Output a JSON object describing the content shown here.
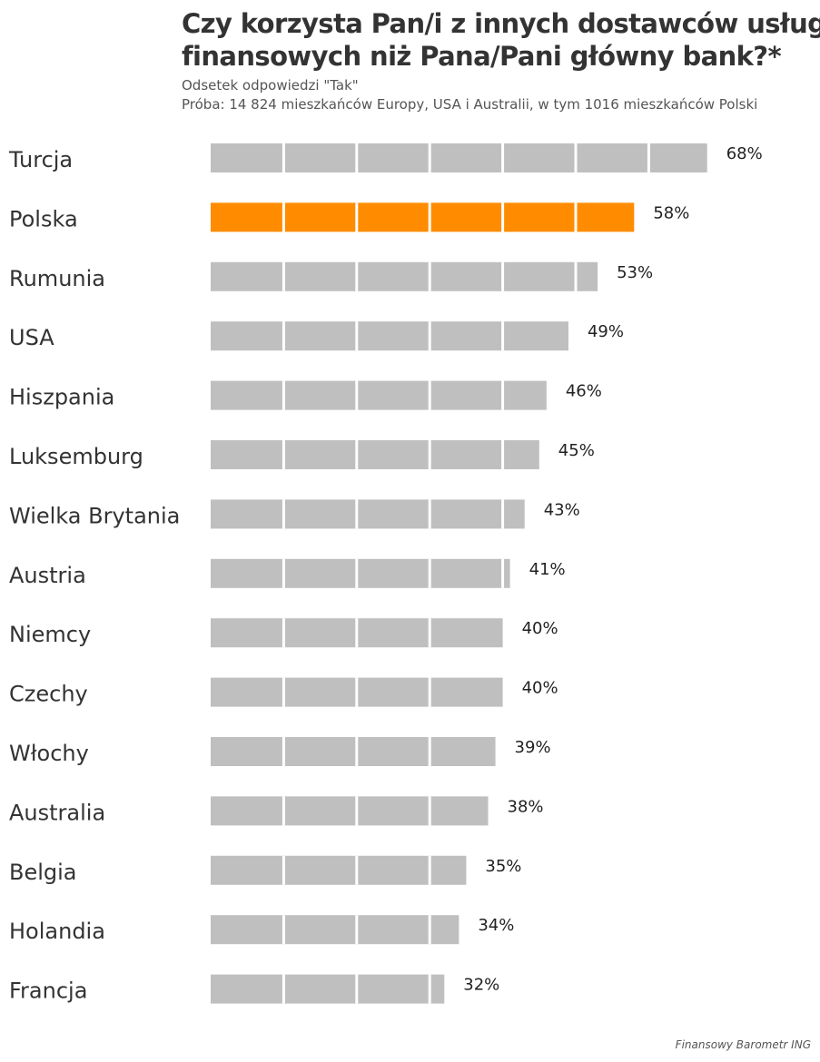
{
  "chart_data": {
    "type": "bar",
    "orientation": "horizontal",
    "title_line1": "Czy korzysta Pan/i z innych dostawców usług",
    "title_line2": "finansowych niż Pana/Pani główny bank?*",
    "subtitle_line1": "Odsetek odpowiedzi \"Tak\"",
    "subtitle_line2": "Próba: 14 824 mieszkańców Europy, USA i Australii, w tym 1016 mieszkańców Polski",
    "categories": [
      "Turcja",
      "Polska",
      "Rumunia",
      "USA",
      "Hiszpania",
      "Luksemburg",
      "Wielka Brytania",
      "Austria",
      "Niemcy",
      "Czechy",
      "Włochy",
      "Australia",
      "Belgia",
      "Holandia",
      "Francja"
    ],
    "values": [
      68,
      58,
      53,
      49,
      46,
      45,
      43,
      41,
      40,
      40,
      39,
      38,
      35,
      34,
      32
    ],
    "value_labels": [
      "68%",
      "58%",
      "53%",
      "49%",
      "46%",
      "45%",
      "43%",
      "41%",
      "40%",
      "40%",
      "39%",
      "38%",
      "35%",
      "34%",
      "32%"
    ],
    "highlight": "Polska",
    "xlim": [
      0,
      100
    ],
    "segment_step": 10,
    "grid": false,
    "legend": "none",
    "colors": {
      "bar": "#bfbfbf",
      "highlight": "#ff8c00",
      "segment_gap": "#ffffff"
    }
  },
  "source": "Finansowy Barometr ING"
}
